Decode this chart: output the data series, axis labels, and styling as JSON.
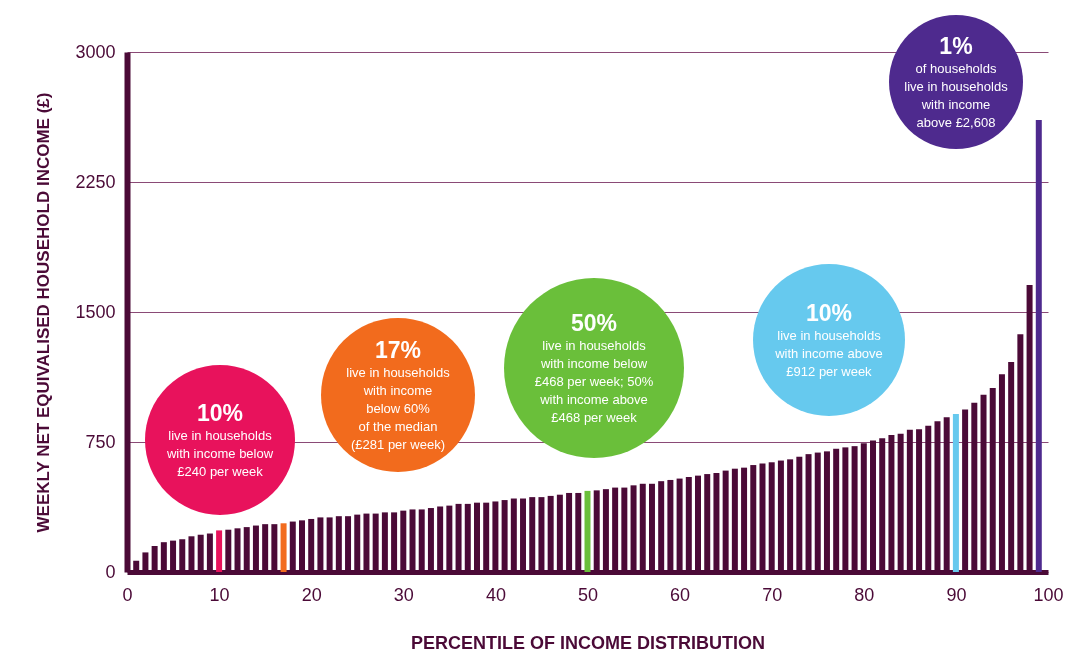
{
  "chart_data": {
    "type": "bar",
    "xlabel": "PERCENTILE OF INCOME DISTRIBUTION",
    "ylabel": "WEEKLY NET EQUIVALISED HOUSEHOLD INCOME (£)",
    "x": [
      1,
      2,
      3,
      4,
      5,
      6,
      7,
      8,
      9,
      10,
      11,
      12,
      13,
      14,
      15,
      16,
      17,
      18,
      19,
      20,
      21,
      22,
      23,
      24,
      25,
      26,
      27,
      28,
      29,
      30,
      31,
      32,
      33,
      34,
      35,
      36,
      37,
      38,
      39,
      40,
      41,
      42,
      43,
      44,
      45,
      46,
      47,
      48,
      49,
      50,
      51,
      52,
      53,
      54,
      55,
      56,
      57,
      58,
      59,
      60,
      61,
      62,
      63,
      64,
      65,
      66,
      67,
      68,
      69,
      70,
      71,
      72,
      73,
      74,
      75,
      76,
      77,
      78,
      79,
      80,
      81,
      82,
      83,
      84,
      85,
      86,
      87,
      88,
      89,
      90,
      91,
      92,
      93,
      94,
      95,
      96,
      97,
      98,
      99
    ],
    "values": [
      65,
      113,
      150,
      172,
      181,
      189,
      206,
      215,
      222,
      240,
      244,
      252,
      259,
      268,
      276,
      276,
      281,
      291,
      298,
      306,
      315,
      315,
      322,
      322,
      331,
      337,
      337,
      344,
      344,
      354,
      361,
      361,
      369,
      378,
      383,
      393,
      393,
      400,
      400,
      407,
      415,
      424,
      424,
      432,
      432,
      439,
      446,
      456,
      456,
      468,
      471,
      478,
      487,
      487,
      500,
      509,
      509,
      524,
      531,
      539,
      548,
      556,
      565,
      571,
      585,
      596,
      602,
      617,
      626,
      633,
      643,
      650,
      665,
      680,
      689,
      696,
      711,
      719,
      726,
      743,
      759,
      772,
      791,
      798,
      820,
      824,
      844,
      869,
      893,
      912,
      937,
      976,
      1022,
      1061,
      1141,
      1211,
      1372,
      1656,
      2608
    ],
    "colors": [
      "#4b0a37",
      "#4b0a37",
      "#4b0a37",
      "#4b0a37",
      "#4b0a37",
      "#4b0a37",
      "#4b0a37",
      "#4b0a37",
      "#4b0a37",
      "#e8125c",
      "#4b0a37",
      "#4b0a37",
      "#4b0a37",
      "#4b0a37",
      "#4b0a37",
      "#4b0a37",
      "#f26b1d",
      "#4b0a37",
      "#4b0a37",
      "#4b0a37",
      "#4b0a37",
      "#4b0a37",
      "#4b0a37",
      "#4b0a37",
      "#4b0a37",
      "#4b0a37",
      "#4b0a37",
      "#4b0a37",
      "#4b0a37",
      "#4b0a37",
      "#4b0a37",
      "#4b0a37",
      "#4b0a37",
      "#4b0a37",
      "#4b0a37",
      "#4b0a37",
      "#4b0a37",
      "#4b0a37",
      "#4b0a37",
      "#4b0a37",
      "#4b0a37",
      "#4b0a37",
      "#4b0a37",
      "#4b0a37",
      "#4b0a37",
      "#4b0a37",
      "#4b0a37",
      "#4b0a37",
      "#4b0a37",
      "#6abf3a",
      "#4b0a37",
      "#4b0a37",
      "#4b0a37",
      "#4b0a37",
      "#4b0a37",
      "#4b0a37",
      "#4b0a37",
      "#4b0a37",
      "#4b0a37",
      "#4b0a37",
      "#4b0a37",
      "#4b0a37",
      "#4b0a37",
      "#4b0a37",
      "#4b0a37",
      "#4b0a37",
      "#4b0a37",
      "#4b0a37",
      "#4b0a37",
      "#4b0a37",
      "#4b0a37",
      "#4b0a37",
      "#4b0a37",
      "#4b0a37",
      "#4b0a37",
      "#4b0a37",
      "#4b0a37",
      "#4b0a37",
      "#4b0a37",
      "#4b0a37",
      "#4b0a37",
      "#4b0a37",
      "#4b0a37",
      "#4b0a37",
      "#4b0a37",
      "#4b0a37",
      "#4b0a37",
      "#4b0a37",
      "#4b0a37",
      "#66c9ee",
      "#4b0a37",
      "#4b0a37",
      "#4b0a37",
      "#4b0a37",
      "#4b0a37",
      "#4b0a37",
      "#4b0a37",
      "#4b0a37",
      "#4e2a8e"
    ],
    "xlim": [
      0,
      100
    ],
    "xticks": [
      0,
      10,
      20,
      30,
      40,
      50,
      60,
      70,
      80,
      90,
      100
    ],
    "ylim": [
      0,
      3000
    ],
    "yticks": [
      0,
      750,
      1500,
      2250,
      3000
    ],
    "grid": "y",
    "annotations": [
      "10%\nlive in households\nwith income below\n£240 per week",
      "17%\nlive in households\nwith income\nbelow 60%\nof the median\n(£281 per week)",
      "50%\nlive in households\nwith income below\n£468 per week; 50%\nwith income above\n£468 per week",
      "10%\nlive in households\nwith income above\n£912 per week",
      "1%\nof households\nlive in households\nwith income\nabove £2,608"
    ]
  }
}
